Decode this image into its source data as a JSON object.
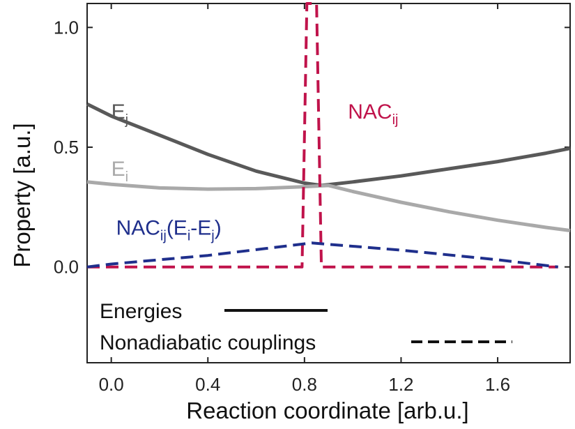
{
  "chart_data": {
    "type": "line",
    "title": "",
    "xlabel": "Reaction coordinate [arb.u.]",
    "ylabel": "Property [a.u.]",
    "xlim": [
      -0.1,
      1.9
    ],
    "ylim": [
      -0.4,
      1.1
    ],
    "grid": false,
    "xticks": [
      {
        "value": 0.0,
        "label": "0.0"
      },
      {
        "value": 0.4,
        "label": "0.4"
      },
      {
        "value": 0.8,
        "label": "0.8"
      },
      {
        "value": 1.2,
        "label": "1.2"
      },
      {
        "value": 1.6,
        "label": "1.6"
      }
    ],
    "yticks": [
      {
        "value": 0.0,
        "label": "0.0"
      },
      {
        "value": 0.5,
        "label": "0.5"
      },
      {
        "value": 1.0,
        "label": "1.0"
      }
    ],
    "series": [
      {
        "key": "Ej",
        "name": "E",
        "sub": "j",
        "style": "solid",
        "color": "#595959",
        "label_at": [
          0.0,
          0.62
        ],
        "x": [
          -0.1,
          0.0,
          0.2,
          0.4,
          0.6,
          0.8,
          0.87,
          1.0,
          1.2,
          1.4,
          1.6,
          1.8,
          1.9
        ],
        "y": [
          0.68,
          0.63,
          0.55,
          0.47,
          0.4,
          0.35,
          0.34,
          0.355,
          0.38,
          0.41,
          0.44,
          0.475,
          0.495
        ]
      },
      {
        "key": "Ei",
        "name": "E",
        "sub": "i",
        "style": "solid",
        "color": "#a9a9a9",
        "label_at": [
          0.0,
          0.38
        ],
        "x": [
          -0.1,
          0.0,
          0.2,
          0.4,
          0.6,
          0.8,
          0.9,
          1.0,
          1.2,
          1.4,
          1.6,
          1.8,
          1.9
        ],
        "y": [
          0.355,
          0.345,
          0.33,
          0.325,
          0.327,
          0.335,
          0.34,
          0.315,
          0.27,
          0.23,
          0.195,
          0.165,
          0.152
        ]
      },
      {
        "key": "NAC",
        "name": "NAC",
        "sub": "ij",
        "style": "dashed",
        "color": "#c0134b",
        "label_at": [
          0.98,
          0.62
        ],
        "x": [
          -0.1,
          0.0,
          0.4,
          0.79,
          0.81,
          0.83,
          0.85,
          0.87,
          1.0,
          1.4,
          1.85
        ],
        "y": [
          0.0,
          0.0,
          0.0,
          0.0,
          1.1,
          1.1,
          1.1,
          0.0,
          0.0,
          0.0,
          0.0
        ]
      },
      {
        "key": "NACdE",
        "name": "NAC",
        "sub": "ij",
        "suffix": "(E",
        "sub2": "i",
        "mid": "-E",
        "sub3": "j",
        "end": ")",
        "style": "dashed",
        "color": "#1f2f8c",
        "label_at": [
          0.02,
          0.135
        ],
        "x": [
          -0.1,
          0.0,
          0.4,
          0.83,
          1.2,
          1.6,
          1.85
        ],
        "y": [
          0.0,
          0.012,
          0.048,
          0.1,
          0.07,
          0.03,
          0.0
        ]
      }
    ]
  },
  "legend": {
    "placement": "bottom-left",
    "items": [
      {
        "label": "Energies",
        "style": "solid"
      },
      {
        "label": "Nonadiabatic couplings",
        "style": "dashed"
      }
    ]
  }
}
